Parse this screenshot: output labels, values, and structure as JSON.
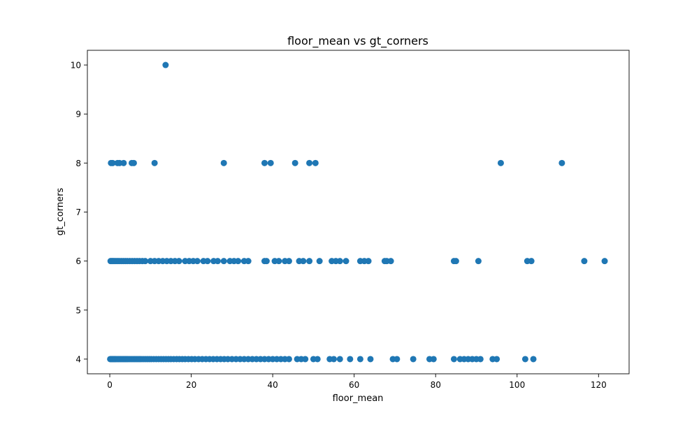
{
  "chart_data": {
    "type": "scatter",
    "title": "floor_mean vs gt_corners",
    "xlabel": "floor_mean",
    "ylabel": "gt_corners",
    "xlim": [
      -5.5,
      127.5
    ],
    "ylim": [
      3.7,
      10.3
    ],
    "xticks": [
      0,
      20,
      40,
      60,
      80,
      100,
      120
    ],
    "yticks": [
      4,
      5,
      6,
      7,
      8,
      9,
      10
    ],
    "grid": false,
    "marker_color": "#1f77b4",
    "series": [
      {
        "points": [
          [
            0.1,
            4
          ],
          [
            0.3,
            4
          ],
          [
            0.5,
            4
          ],
          [
            0.7,
            4
          ],
          [
            0.9,
            4
          ],
          [
            1.1,
            4
          ],
          [
            1.3,
            4
          ],
          [
            1.5,
            4
          ],
          [
            1.8,
            4
          ],
          [
            2.1,
            4
          ],
          [
            2.4,
            4
          ],
          [
            2.7,
            4
          ],
          [
            3.0,
            4
          ],
          [
            3.3,
            4
          ],
          [
            3.6,
            4
          ],
          [
            3.9,
            4
          ],
          [
            4.2,
            4
          ],
          [
            4.5,
            4
          ],
          [
            4.9,
            4
          ],
          [
            5.3,
            4
          ],
          [
            5.7,
            4
          ],
          [
            6.1,
            4
          ],
          [
            6.5,
            4
          ],
          [
            6.9,
            4
          ],
          [
            7.3,
            4
          ],
          [
            7.7,
            4
          ],
          [
            8.2,
            4
          ],
          [
            8.7,
            4
          ],
          [
            9.2,
            4
          ],
          [
            9.7,
            4
          ],
          [
            10.2,
            4
          ],
          [
            10.8,
            4
          ],
          [
            11.4,
            4
          ],
          [
            12.0,
            4
          ],
          [
            12.6,
            4
          ],
          [
            13.2,
            4
          ],
          [
            13.8,
            4
          ],
          [
            14.4,
            4
          ],
          [
            15.0,
            4
          ],
          [
            15.7,
            4
          ],
          [
            16.4,
            4
          ],
          [
            17.1,
            4
          ],
          [
            17.8,
            4
          ],
          [
            18.5,
            4
          ],
          [
            19.3,
            4
          ],
          [
            20.1,
            4
          ],
          [
            20.9,
            4
          ],
          [
            21.8,
            4
          ],
          [
            22.7,
            4
          ],
          [
            23.6,
            4
          ],
          [
            24.5,
            4
          ],
          [
            25.4,
            4
          ],
          [
            26.3,
            4
          ],
          [
            27.2,
            4
          ],
          [
            28.1,
            4
          ],
          [
            29.0,
            4
          ],
          [
            30.0,
            4
          ],
          [
            31.0,
            4
          ],
          [
            32.0,
            4
          ],
          [
            33.0,
            4
          ],
          [
            34.0,
            4
          ],
          [
            35.0,
            4
          ],
          [
            36.0,
            4
          ],
          [
            37.0,
            4
          ],
          [
            38.0,
            4
          ],
          [
            39.0,
            4
          ],
          [
            40.0,
            4
          ],
          [
            41.0,
            4
          ],
          [
            42.0,
            4
          ],
          [
            43.0,
            4
          ],
          [
            44.0,
            4
          ],
          [
            46.0,
            4
          ],
          [
            47.0,
            4
          ],
          [
            48.0,
            4
          ],
          [
            50.0,
            4
          ],
          [
            51.0,
            4
          ],
          [
            54.0,
            4
          ],
          [
            55.0,
            4
          ],
          [
            56.5,
            4
          ],
          [
            59.0,
            4
          ],
          [
            61.5,
            4
          ],
          [
            64.0,
            4
          ],
          [
            69.5,
            4
          ],
          [
            70.5,
            4
          ],
          [
            74.5,
            4
          ],
          [
            78.5,
            4
          ],
          [
            79.5,
            4
          ],
          [
            84.5,
            4
          ],
          [
            86.0,
            4
          ],
          [
            87.0,
            4
          ],
          [
            88.0,
            4
          ],
          [
            89.0,
            4
          ],
          [
            90.0,
            4
          ],
          [
            91.0,
            4
          ],
          [
            94.0,
            4
          ],
          [
            95.0,
            4
          ],
          [
            102.0,
            4
          ],
          [
            104.0,
            4
          ],
          [
            0.2,
            6
          ],
          [
            0.5,
            6
          ],
          [
            0.8,
            6
          ],
          [
            1.1,
            6
          ],
          [
            1.5,
            6
          ],
          [
            1.9,
            6
          ],
          [
            2.3,
            6
          ],
          [
            2.8,
            6
          ],
          [
            3.3,
            6
          ],
          [
            3.8,
            6
          ],
          [
            4.3,
            6
          ],
          [
            4.9,
            6
          ],
          [
            5.5,
            6
          ],
          [
            6.1,
            6
          ],
          [
            6.7,
            6
          ],
          [
            7.3,
            6
          ],
          [
            8.0,
            6
          ],
          [
            8.7,
            6
          ],
          [
            10.0,
            6
          ],
          [
            11.0,
            6
          ],
          [
            12.0,
            6
          ],
          [
            13.0,
            6
          ],
          [
            14.0,
            6
          ],
          [
            15.0,
            6
          ],
          [
            16.0,
            6
          ],
          [
            17.0,
            6
          ],
          [
            18.5,
            6
          ],
          [
            19.5,
            6
          ],
          [
            20.5,
            6
          ],
          [
            21.5,
            6
          ],
          [
            23.0,
            6
          ],
          [
            24.0,
            6
          ],
          [
            25.5,
            6
          ],
          [
            26.5,
            6
          ],
          [
            28.0,
            6
          ],
          [
            29.5,
            6
          ],
          [
            30.5,
            6
          ],
          [
            31.5,
            6
          ],
          [
            33.0,
            6
          ],
          [
            34.0,
            6
          ],
          [
            38.0,
            6
          ],
          [
            38.5,
            6
          ],
          [
            40.5,
            6
          ],
          [
            41.5,
            6
          ],
          [
            43.0,
            6
          ],
          [
            44.0,
            6
          ],
          [
            46.5,
            6
          ],
          [
            47.5,
            6
          ],
          [
            49.0,
            6
          ],
          [
            51.5,
            6
          ],
          [
            54.5,
            6
          ],
          [
            55.5,
            6
          ],
          [
            56.5,
            6
          ],
          [
            58.0,
            6
          ],
          [
            61.5,
            6
          ],
          [
            62.5,
            6
          ],
          [
            63.5,
            6
          ],
          [
            67.5,
            6
          ],
          [
            68.0,
            6
          ],
          [
            69.0,
            6
          ],
          [
            84.5,
            6
          ],
          [
            85.0,
            6
          ],
          [
            90.5,
            6
          ],
          [
            102.5,
            6
          ],
          [
            103.5,
            6
          ],
          [
            116.5,
            6
          ],
          [
            121.5,
            6
          ],
          [
            0.3,
            8
          ],
          [
            0.7,
            8
          ],
          [
            1.9,
            8
          ],
          [
            2.4,
            8
          ],
          [
            3.4,
            8
          ],
          [
            5.4,
            8
          ],
          [
            5.9,
            8
          ],
          [
            11.0,
            8
          ],
          [
            28.0,
            8
          ],
          [
            38.0,
            8
          ],
          [
            39.5,
            8
          ],
          [
            45.5,
            8
          ],
          [
            49.0,
            8
          ],
          [
            50.5,
            8
          ],
          [
            96.0,
            8
          ],
          [
            111.0,
            8
          ],
          [
            13.7,
            10
          ]
        ]
      }
    ]
  }
}
